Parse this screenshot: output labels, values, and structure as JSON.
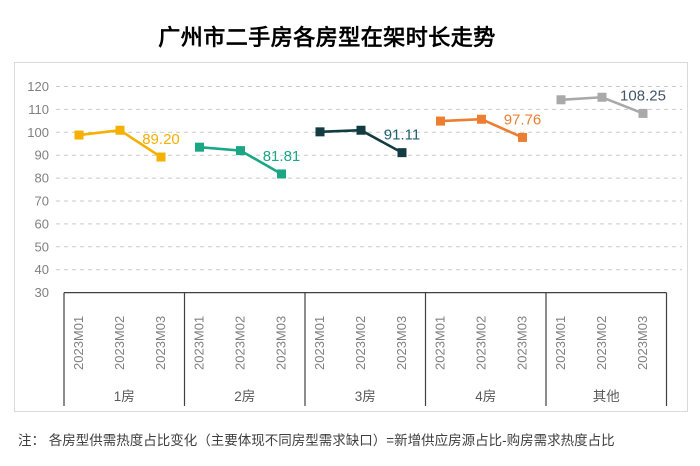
{
  "chart_data": {
    "type": "line",
    "title": "广州市二手房各房型在架时长走势",
    "ylim": [
      30,
      120
    ],
    "y_ticks": [
      120,
      110,
      100,
      90,
      80,
      70,
      60,
      50,
      40,
      30
    ],
    "x_sublabels": [
      "2023M01",
      "2023M02",
      "2023M03"
    ],
    "grid": true,
    "legend_position": "none",
    "series": [
      {
        "name": "1房",
        "color": "#F5B000",
        "label_color": "#F5B000",
        "values": [
          98.8,
          100.9,
          89.2
        ],
        "end_label": "89.20"
      },
      {
        "name": "2房",
        "color": "#1BA784",
        "label_color": "#1BA784",
        "values": [
          93.5,
          92.0,
          81.81
        ],
        "end_label": "81.81"
      },
      {
        "name": "3房",
        "color": "#123B42",
        "label_color": "#206170",
        "values": [
          100.2,
          100.9,
          91.11
        ],
        "end_label": "91.11"
      },
      {
        "name": "4房",
        "color": "#ED7D31",
        "label_color": "#ED7D31",
        "values": [
          104.9,
          105.7,
          97.76
        ],
        "end_label": "97.76"
      },
      {
        "name": "其他",
        "color": "#A9A9A9",
        "label_color": "#44546A",
        "values": [
          114.2,
          115.3,
          108.25
        ],
        "end_label": "108.25"
      }
    ],
    "colors": {
      "axis": "#404040",
      "grid": "#C9C9C9",
      "tick_label": "#808080",
      "month_label": "#808080",
      "group_label": "#595959",
      "border": "#D9D9D9"
    }
  },
  "footnote": {
    "text": "注：  各房型供需热度占比变化（主要体现不同房型需求缺口）=新增供应房源占比-购房需求热度占比"
  }
}
